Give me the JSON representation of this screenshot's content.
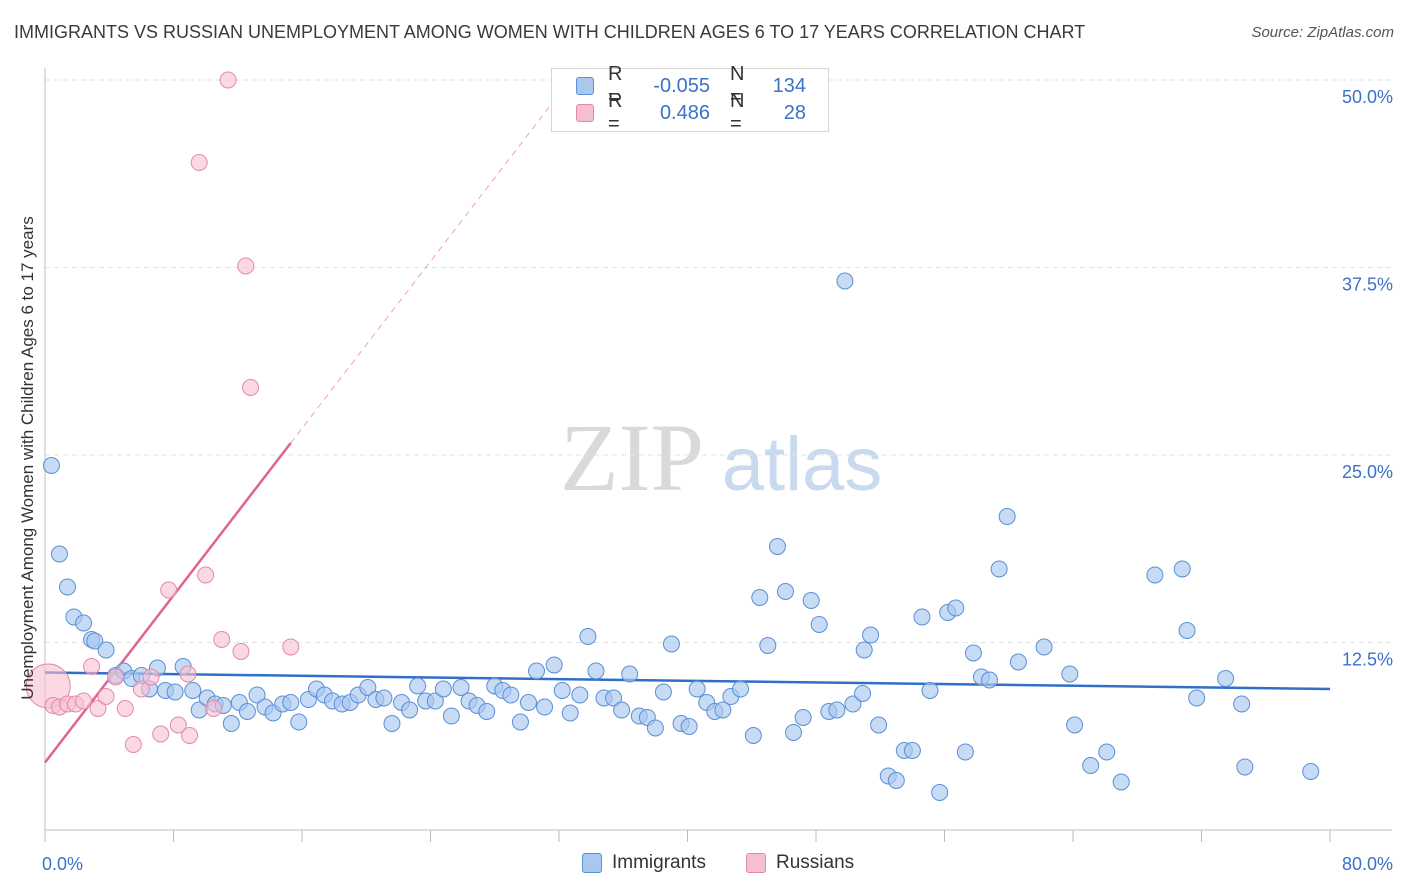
{
  "title": "IMMIGRANTS VS RUSSIAN UNEMPLOYMENT AMONG WOMEN WITH CHILDREN AGES 6 TO 17 YEARS CORRELATION CHART",
  "source": "Source: ZipAtlas.com",
  "watermark": {
    "zip": "ZIP",
    "atlas": "atlas"
  },
  "colors": {
    "immigrants_fill": "#a9c8f0",
    "immigrants_stroke": "#5b8fd6",
    "immigrants_line": "#2f6fc7",
    "russians_fill": "#f6bfd0",
    "russians_stroke": "#e48aa8",
    "russians_line": "#e0648f",
    "grid": "#e2e2e2",
    "tick_label": "#3a72c9"
  },
  "legend_top": {
    "rows": [
      {
        "r_label": "R =",
        "r_value": "-0.055",
        "n_label": "N =",
        "n_value": "134"
      },
      {
        "r_label": "R =",
        "r_value": "0.486",
        "n_label": "N =",
        "n_value": "28"
      }
    ]
  },
  "chart_data": {
    "type": "scatter",
    "title": "IMMIGRANTS VS RUSSIAN UNEMPLOYMENT AMONG WOMEN WITH CHILDREN AGES 6 TO 17 YEARS CORRELATION CHART",
    "xlabel": "",
    "ylabel": "Unemployment Among Women with Children Ages 6 to 17 years",
    "xlim": [
      0,
      80
    ],
    "ylim": [
      0,
      50
    ],
    "x_tick_labels": [
      "0.0%",
      "80.0%"
    ],
    "y_ticks": [
      12.5,
      25.0,
      37.5,
      50.0
    ],
    "y_tick_labels": [
      "12.5%",
      "25.0%",
      "37.5%",
      "50.0%"
    ],
    "grid": "horizontal dashed",
    "legend": "bottom-center",
    "series": [
      {
        "name": "Immigrants",
        "trend": {
          "x": [
            0,
            80
          ],
          "y": [
            10.5,
            9.4
          ]
        },
        "points": [
          [
            0.4,
            24.3
          ],
          [
            0.9,
            18.4
          ],
          [
            1.4,
            16.2
          ],
          [
            1.8,
            14.2
          ],
          [
            2.4,
            13.8
          ],
          [
            2.9,
            12.7
          ],
          [
            3.1,
            12.6
          ],
          [
            3.8,
            12.0
          ],
          [
            4.4,
            10.3
          ],
          [
            4.9,
            10.6
          ],
          [
            5.4,
            10.1
          ],
          [
            6.0,
            10.3
          ],
          [
            6.5,
            9.4
          ],
          [
            7.0,
            10.8
          ],
          [
            7.5,
            9.3
          ],
          [
            8.1,
            9.2
          ],
          [
            8.6,
            10.9
          ],
          [
            9.2,
            9.3
          ],
          [
            9.6,
            8.0
          ],
          [
            10.1,
            8.8
          ],
          [
            10.6,
            8.4
          ],
          [
            11.1,
            8.3
          ],
          [
            11.6,
            7.1
          ],
          [
            12.1,
            8.5
          ],
          [
            12.6,
            7.9
          ],
          [
            13.2,
            9.0
          ],
          [
            13.7,
            8.2
          ],
          [
            14.2,
            7.8
          ],
          [
            14.8,
            8.4
          ],
          [
            15.3,
            8.5
          ],
          [
            15.8,
            7.2
          ],
          [
            16.4,
            8.7
          ],
          [
            16.9,
            9.4
          ],
          [
            17.4,
            9.0
          ],
          [
            17.9,
            8.6
          ],
          [
            18.5,
            8.4
          ],
          [
            19.0,
            8.5
          ],
          [
            19.5,
            9.0
          ],
          [
            20.1,
            9.5
          ],
          [
            20.6,
            8.7
          ],
          [
            21.1,
            8.8
          ],
          [
            21.6,
            7.1
          ],
          [
            22.2,
            8.5
          ],
          [
            22.7,
            8.0
          ],
          [
            23.2,
            9.6
          ],
          [
            23.7,
            8.6
          ],
          [
            24.3,
            8.6
          ],
          [
            24.8,
            9.4
          ],
          [
            25.3,
            7.6
          ],
          [
            25.9,
            9.5
          ],
          [
            26.4,
            8.6
          ],
          [
            26.9,
            8.3
          ],
          [
            27.5,
            7.9
          ],
          [
            28.0,
            9.6
          ],
          [
            28.5,
            9.3
          ],
          [
            29.0,
            9.0
          ],
          [
            29.6,
            7.2
          ],
          [
            30.1,
            8.5
          ],
          [
            30.6,
            10.6
          ],
          [
            31.1,
            8.2
          ],
          [
            31.7,
            11.0
          ],
          [
            32.2,
            9.3
          ],
          [
            32.7,
            7.8
          ],
          [
            33.3,
            9.0
          ],
          [
            33.8,
            12.9
          ],
          [
            34.3,
            10.6
          ],
          [
            34.8,
            8.8
          ],
          [
            35.4,
            8.8
          ],
          [
            35.9,
            8.0
          ],
          [
            36.4,
            10.4
          ],
          [
            37.0,
            7.6
          ],
          [
            37.5,
            7.5
          ],
          [
            38.0,
            6.8
          ],
          [
            38.5,
            9.2
          ],
          [
            39.0,
            12.4
          ],
          [
            39.6,
            7.1
          ],
          [
            40.1,
            6.9
          ],
          [
            40.6,
            9.4
          ],
          [
            41.2,
            8.5
          ],
          [
            41.7,
            7.9
          ],
          [
            42.2,
            8.0
          ],
          [
            42.7,
            8.9
          ],
          [
            43.3,
            9.4
          ],
          [
            44.1,
            6.3
          ],
          [
            44.5,
            15.5
          ],
          [
            45.0,
            12.3
          ],
          [
            45.6,
            18.9
          ],
          [
            46.1,
            15.9
          ],
          [
            46.6,
            6.5
          ],
          [
            47.2,
            7.5
          ],
          [
            47.7,
            15.3
          ],
          [
            48.2,
            13.7
          ],
          [
            48.8,
            7.9
          ],
          [
            49.3,
            8.0
          ],
          [
            49.8,
            36.6
          ],
          [
            50.3,
            8.4
          ],
          [
            50.9,
            9.1
          ],
          [
            51.4,
            13.0
          ],
          [
            51.9,
            7.0
          ],
          [
            52.5,
            3.6
          ],
          [
            53.0,
            3.3
          ],
          [
            53.5,
            5.3
          ],
          [
            54.0,
            5.3
          ],
          [
            54.6,
            14.2
          ],
          [
            55.1,
            9.3
          ],
          [
            55.7,
            2.5
          ],
          [
            56.2,
            14.5
          ],
          [
            56.7,
            14.8
          ],
          [
            57.3,
            5.2
          ],
          [
            57.8,
            11.8
          ],
          [
            58.3,
            10.2
          ],
          [
            58.8,
            10.0
          ],
          [
            59.4,
            17.4
          ],
          [
            59.9,
            20.9
          ],
          [
            60.6,
            11.2
          ],
          [
            62.2,
            12.2
          ],
          [
            63.8,
            10.4
          ],
          [
            64.1,
            7.0
          ],
          [
            65.1,
            4.3
          ],
          [
            66.1,
            5.2
          ],
          [
            67.0,
            3.2
          ],
          [
            69.1,
            17.0
          ],
          [
            70.8,
            17.4
          ],
          [
            71.1,
            13.3
          ],
          [
            71.7,
            8.8
          ],
          [
            73.5,
            10.1
          ],
          [
            74.5,
            8.4
          ],
          [
            74.7,
            4.2
          ],
          [
            78.8,
            3.9
          ],
          [
            51.0,
            12.0
          ]
        ]
      },
      {
        "name": "Russians",
        "trend": {
          "x": [
            0,
            15.3
          ],
          "y": [
            4.5,
            25.8
          ]
        },
        "points": [
          [
            0.2,
            9.6
          ],
          [
            0.5,
            8.3
          ],
          [
            0.9,
            8.2
          ],
          [
            1.4,
            8.4
          ],
          [
            1.9,
            8.4
          ],
          [
            2.4,
            8.6
          ],
          [
            2.9,
            10.9
          ],
          [
            3.3,
            8.1
          ],
          [
            3.8,
            8.9
          ],
          [
            4.4,
            10.2
          ],
          [
            5.0,
            8.1
          ],
          [
            5.5,
            5.7
          ],
          [
            6.0,
            9.4
          ],
          [
            6.6,
            10.2
          ],
          [
            7.2,
            6.4
          ],
          [
            7.7,
            16.0
          ],
          [
            8.3,
            7.0
          ],
          [
            8.9,
            10.4
          ],
          [
            9.0,
            6.3
          ],
          [
            9.6,
            44.5
          ],
          [
            10.0,
            17.0
          ],
          [
            10.5,
            8.1
          ],
          [
            11.0,
            12.7
          ],
          [
            11.4,
            50.0
          ],
          [
            12.2,
            11.9
          ],
          [
            12.5,
            37.6
          ],
          [
            12.8,
            29.5
          ],
          [
            15.3,
            12.2
          ]
        ]
      }
    ]
  },
  "legend_bottom": {
    "items": [
      "Immigrants",
      "Russians"
    ]
  }
}
